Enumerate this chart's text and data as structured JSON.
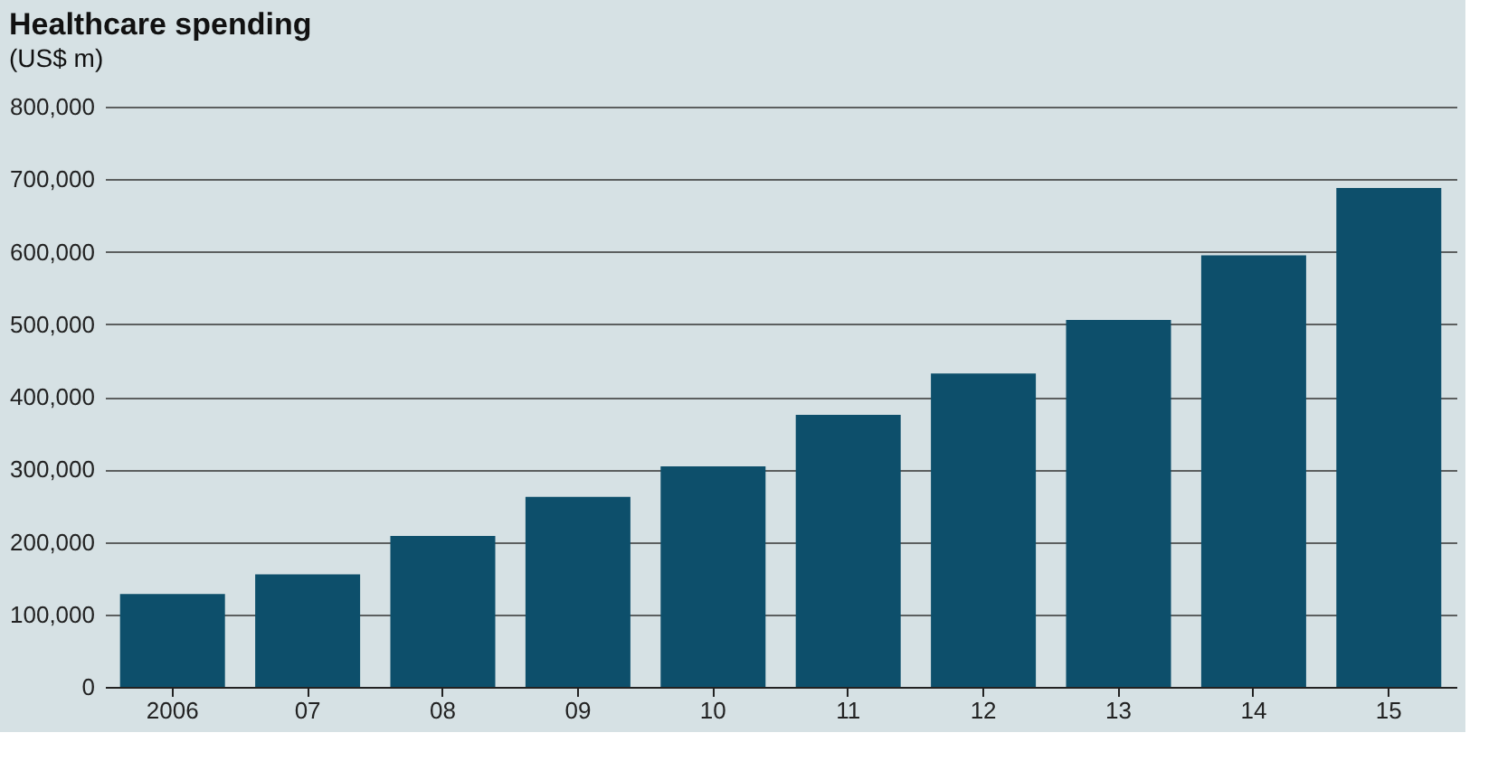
{
  "chart_data": {
    "type": "bar",
    "title": "Healthcare spending",
    "subtitle": "(US$ m)",
    "categories": [
      "2006",
      "07",
      "08",
      "09",
      "10",
      "11",
      "12",
      "13",
      "14",
      "15"
    ],
    "values": [
      128000,
      155000,
      208000,
      262000,
      304000,
      375000,
      432000,
      506000,
      595000,
      688000
    ],
    "color": "#0d4f6b",
    "ylim": [
      0,
      800000
    ],
    "yticks": [
      0,
      {
        "value": 100000,
        "label": "100,000"
      },
      {
        "value": 200000,
        "label": "200,000"
      },
      {
        "value": 300000,
        "label": "300,000"
      },
      {
        "value": 400000,
        "label": "400,000"
      },
      {
        "value": 500000,
        "label": "500,000"
      },
      {
        "value": 600000,
        "label": "600,000"
      },
      {
        "value": 700000,
        "label": "700,000"
      },
      {
        "value": 800000,
        "label": "800,000"
      }
    ],
    "grid": "y"
  }
}
